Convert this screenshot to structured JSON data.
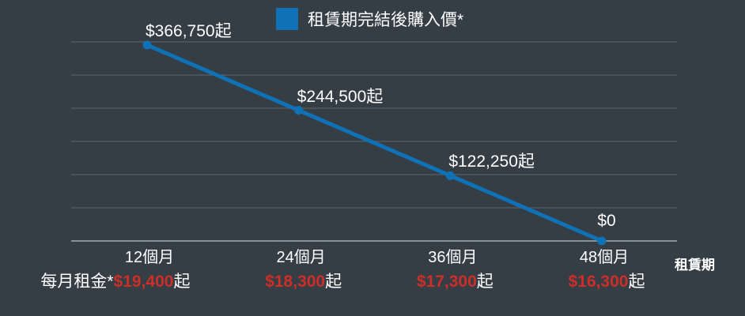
{
  "legend": {
    "label": "租賃期完結後購入價*"
  },
  "x_axis_title": "租賃期",
  "monthly_rent_label": "每月租金*",
  "colors": {
    "background": "#353d45",
    "line": "#0f72b7",
    "legend_swatch": "#0f72b7",
    "marker": "#0f72b7",
    "price_red": "#cc2e28",
    "text": "#ffffff",
    "gridline": "#5f6870",
    "axis_line": "#a3abb2"
  },
  "chart_data": {
    "type": "line",
    "title": "",
    "categories": [
      "12個月",
      "24個月",
      "36個月",
      "48個月"
    ],
    "series": [
      {
        "name": "租賃期完結後購入價*",
        "values": [
          366750,
          244500,
          122250,
          0
        ]
      }
    ],
    "point_labels": [
      "$366,750起",
      "$244,500起",
      "$122,250起",
      "$0"
    ],
    "monthly_rents": [
      {
        "price": "$19,400",
        "suffix": "起"
      },
      {
        "price": "$18,300",
        "suffix": "起"
      },
      {
        "price": "$17,300",
        "suffix": "起"
      },
      {
        "price": "$16,300",
        "suffix": "起"
      }
    ],
    "xlabel": "租賃期",
    "ylabel": "",
    "ylim": [
      0,
      366750
    ],
    "gridline_count": 7,
    "grid": true,
    "legend_position": "top-center"
  }
}
